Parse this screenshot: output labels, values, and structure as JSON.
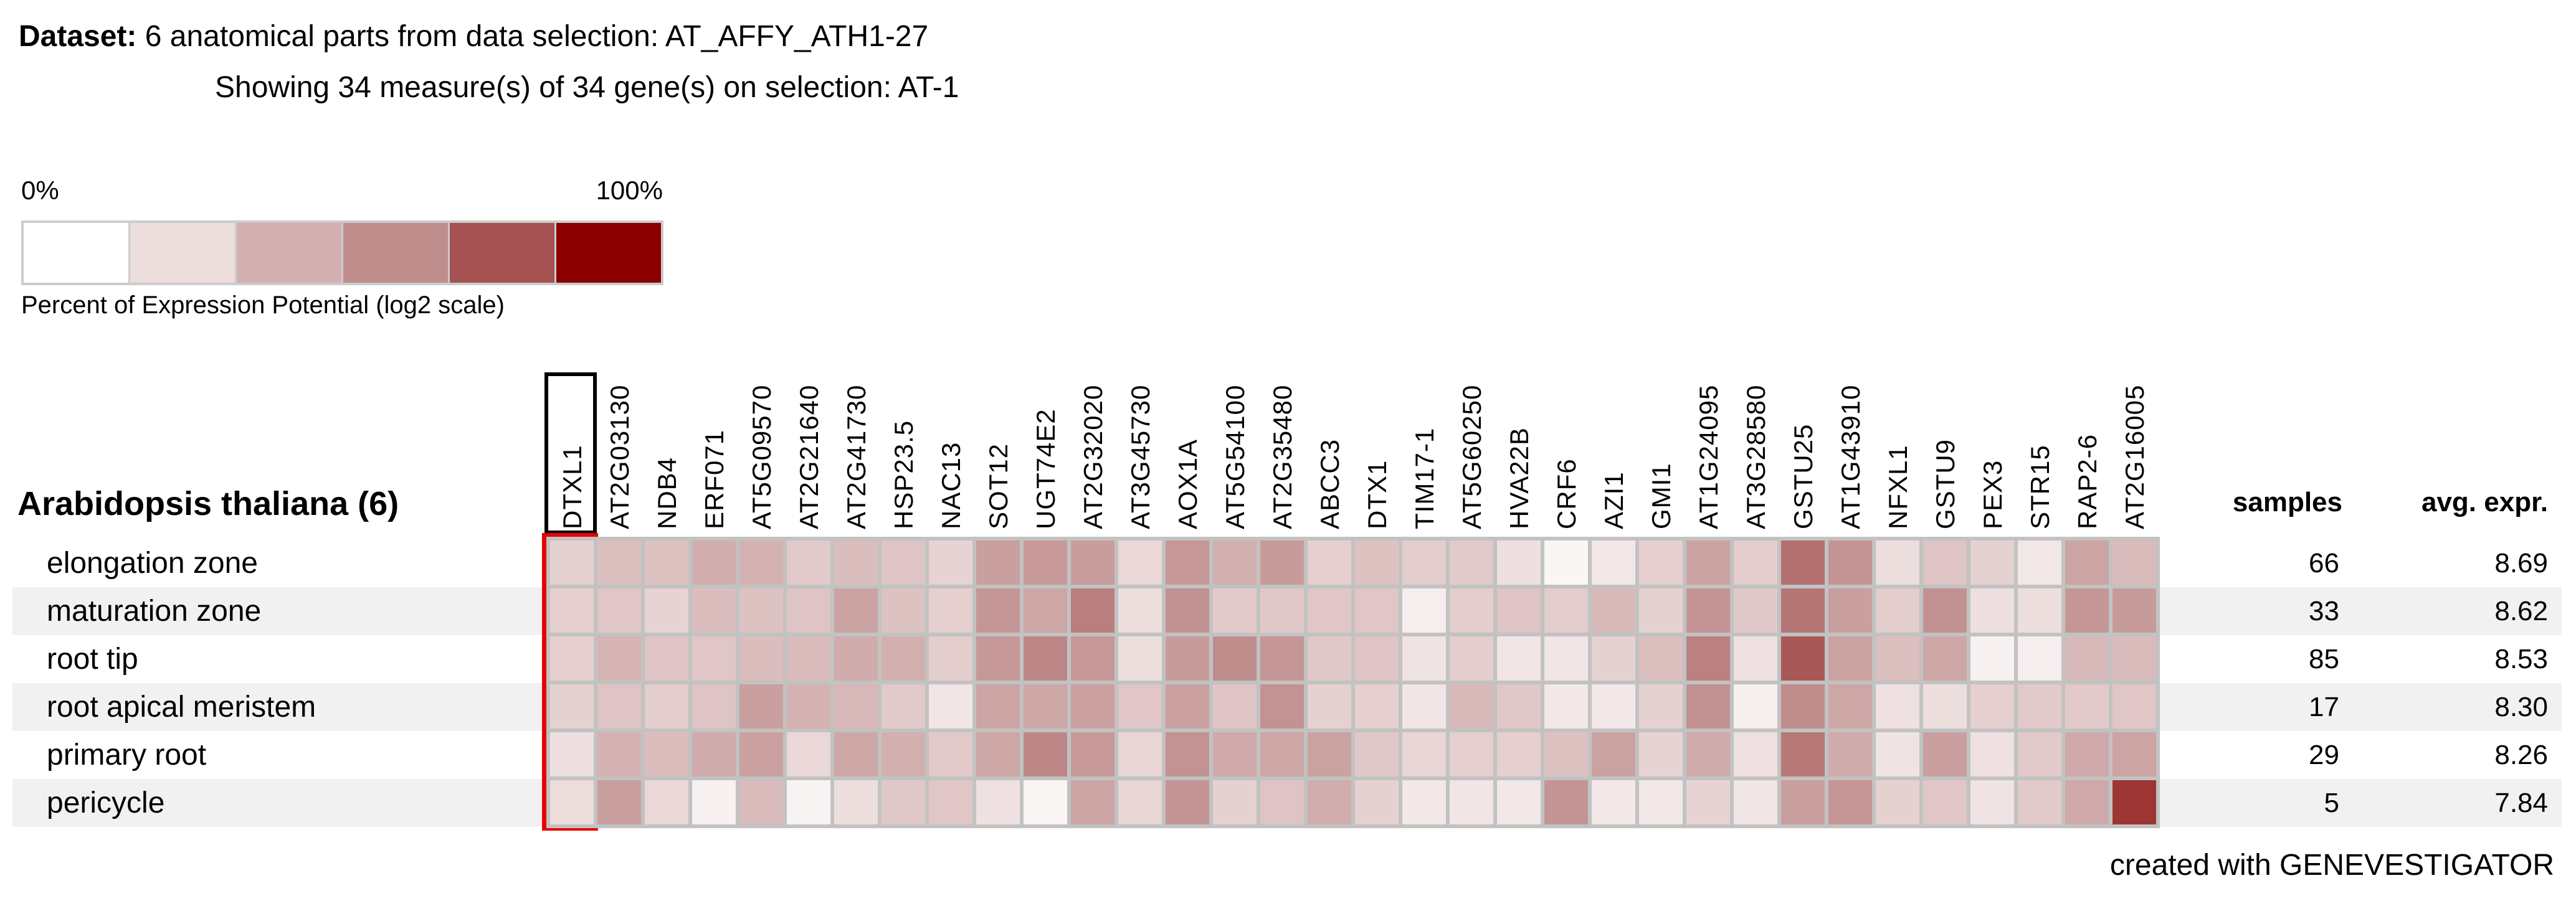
{
  "header": {
    "dataset_label": "Dataset:",
    "line1": "6 anatomical parts from data selection: AT_AFFY_ATH1-27",
    "line2": "Showing 34 measure(s) of 34 gene(s) on selection: AT-1"
  },
  "legend": {
    "min_label": "0%",
    "max_label": "100%",
    "caption": "Percent of Expression Potential (log2 scale)",
    "swatches": [
      "#ffffff",
      "#ecdcdc",
      "#d3b0b0",
      "#c08d8d",
      "#a65252",
      "#8b0000"
    ]
  },
  "table_headers": {
    "samples": "samples",
    "avg_expr": "avg. expr."
  },
  "chart_data": {
    "type": "heatmap",
    "title": "Percent of Expression Potential (log2 scale)",
    "row_group_label": "Arabidopsis thaliana (6)",
    "highlighted_column": "DTXL1",
    "columns": [
      "DTXL1",
      "AT2G03130",
      "NDB4",
      "ERF071",
      "AT5G09570",
      "AT2G21640",
      "AT2G41730",
      "HSP23.5",
      "NAC13",
      "SOT12",
      "UGT74E2",
      "AT2G32020",
      "AT3G45730",
      "AOX1A",
      "AT5G54100",
      "AT2G35480",
      "ABCC3",
      "DTX1",
      "TIM17-1",
      "AT5G60250",
      "HVA22B",
      "CRF6",
      "AZI1",
      "GMI1",
      "AT1G24095",
      "AT3G28580",
      "GSTU25",
      "AT1G43910",
      "NFXL1",
      "GSTU9",
      "PEX3",
      "STR15",
      "RAP2-6",
      "AT2G16005"
    ],
    "rows": [
      "elongation zone",
      "maturation zone",
      "root tip",
      "root apical meristem",
      "primary root",
      "pericycle"
    ],
    "samples": [
      66,
      33,
      85,
      17,
      29,
      5
    ],
    "avg_expr": [
      "8.69",
      "8.62",
      "8.53",
      "8.30",
      "8.26",
      "7.84"
    ],
    "values_percent": [
      [
        25,
        33,
        32,
        41,
        39,
        28,
        34,
        31,
        24,
        50,
        53,
        51,
        22,
        54,
        40,
        52,
        26,
        32,
        27,
        28,
        18,
        5,
        14,
        26,
        48,
        27,
        70,
        56,
        19,
        31,
        25,
        14,
        47,
        35
      ],
      [
        26,
        30,
        24,
        34,
        32,
        31,
        48,
        32,
        26,
        55,
        46,
        65,
        20,
        58,
        28,
        29,
        30,
        30,
        10,
        27,
        31,
        27,
        36,
        25,
        56,
        29,
        68,
        50,
        27,
        58,
        18,
        19,
        55,
        52
      ],
      [
        26,
        38,
        31,
        30,
        34,
        35,
        43,
        40,
        27,
        54,
        62,
        54,
        19,
        52,
        60,
        55,
        29,
        31,
        16,
        27,
        15,
        15,
        25,
        33,
        64,
        17,
        78,
        48,
        33,
        45,
        8,
        10,
        36,
        35
      ],
      [
        25,
        31,
        27,
        31,
        50,
        39,
        37,
        28,
        15,
        47,
        46,
        49,
        30,
        49,
        31,
        57,
        25,
        26,
        15,
        36,
        29,
        13,
        13,
        25,
        58,
        9,
        60,
        46,
        17,
        19,
        26,
        28,
        28,
        30
      ],
      [
        18,
        39,
        34,
        43,
        49,
        22,
        45,
        40,
        28,
        46,
        62,
        53,
        23,
        57,
        44,
        46,
        48,
        29,
        23,
        26,
        26,
        32,
        48,
        24,
        43,
        17,
        67,
        43,
        16,
        50,
        17,
        28,
        44,
        47
      ],
      [
        20,
        50,
        22,
        8,
        35,
        7,
        19,
        29,
        30,
        17,
        6,
        47,
        23,
        56,
        25,
        31,
        42,
        25,
        13,
        15,
        14,
        56,
        13,
        14,
        24,
        15,
        50,
        55,
        25,
        30,
        16,
        28,
        44,
        87
      ]
    ],
    "color_scale": {
      "stops_percent": [
        0,
        20,
        40,
        60,
        80,
        100
      ],
      "colors": [
        "#ffffff",
        "#ecdcdc",
        "#d3b0b0",
        "#c08d8d",
        "#a65252",
        "#8b0000"
      ]
    },
    "layout": {
      "grid": true,
      "legend_position": "top-left",
      "zebra_color": "#f1f1f1",
      "grid_line_color": "#c2c2c2",
      "highlight_header_box": "#000000",
      "highlight_column_box": "#e80000"
    }
  },
  "footer": {
    "credit": "created with GENEVESTIGATOR"
  }
}
